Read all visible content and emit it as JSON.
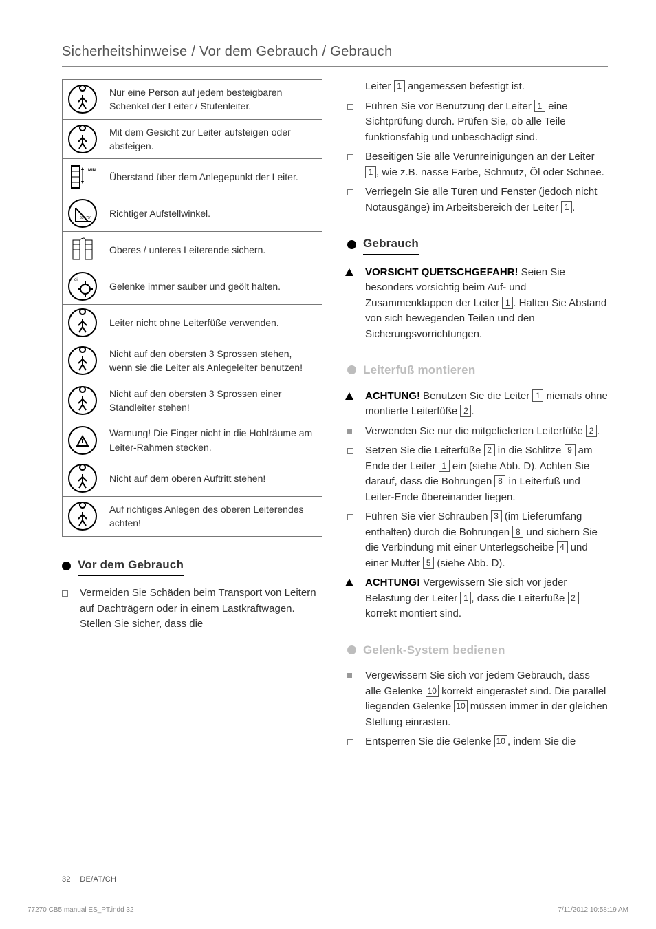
{
  "page_title": "Sicherheitshinweise / Vor dem Gebrauch / Gebrauch",
  "icon_rows": [
    {
      "text": "Nur eine Person auf jedem besteigbaren Schenkel der Leiter / Stufenleiter."
    },
    {
      "text": "Mit dem Gesicht zur Leiter aufsteigen oder absteigen."
    },
    {
      "text": "Überstand über dem Anlegepunkt der Leiter.",
      "badge": "MIN. 1m"
    },
    {
      "text": "Richtiger Aufstellwinkel.",
      "angle": "65°-75°"
    },
    {
      "text": "Oberes / unteres Leiterende sichern."
    },
    {
      "text": "Gelenke immer sauber und geölt halten."
    },
    {
      "text": "Leiter nicht ohne Leiterfüße verwenden."
    },
    {
      "text": "Nicht auf den obersten 3 Sprossen stehen, wenn sie die Leiter als Anlegeleiter benutzen!"
    },
    {
      "text": "Nicht auf den obersten 3 Sprossen einer Standleiter stehen!"
    },
    {
      "text": "Warnung! Die Finger nicht in die Hohlräume am Leiter-Rahmen stecken."
    },
    {
      "text": "Nicht auf dem oberen Auftritt stehen!"
    },
    {
      "text": "Auf richtiges Anlegen des oberen Leiterendes achten!"
    }
  ],
  "sections": {
    "vor_dem_gebrauch": {
      "title": "Vor dem Gebrauch",
      "items": [
        {
          "marker": "hollow",
          "text": "Vermeiden Sie Schäden beim Transport von Leitern auf Dachträgern oder in einem Lastkraftwagen. Stellen Sie sicher, dass die"
        }
      ]
    },
    "right_intro_items": [
      {
        "marker": "none",
        "pre": "Leiter ",
        "ref": "1",
        "post": " angemessen befestigt ist."
      },
      {
        "marker": "hollow",
        "pre": "Führen Sie vor Benutzung der Leiter ",
        "ref": "1",
        "post": " eine Sichtprüfung durch. Prüfen Sie, ob alle Teile funktionsfähig und unbeschädigt sind."
      },
      {
        "marker": "hollow",
        "pre": "Beseitigen Sie alle Verunreinigungen an der Leiter ",
        "ref": "1",
        "post": ", wie z.B. nasse Farbe, Schmutz, Öl oder Schnee."
      },
      {
        "marker": "hollow",
        "pre": "Verriegeln Sie alle Türen und Fenster (jedoch nicht Notausgänge) im Arbeitsbereich der Leiter ",
        "ref": "1",
        "post": "."
      }
    ],
    "gebrauch": {
      "title": "Gebrauch",
      "items": [
        {
          "marker": "tri",
          "bold": "VORSICHT QUETSCHGEFAHR!",
          "pre": " Seien Sie besonders vorsichtig beim Auf- und Zusammenklappen der Leiter ",
          "ref": "1",
          "post": ". Halten Sie Abstand von sich bewegenden Teilen und den Sicherungsvorrichtungen."
        }
      ]
    },
    "leiterfuss": {
      "title": "Leiterfuß montieren",
      "items": [
        {
          "marker": "tri",
          "bold": "ACHTUNG!",
          "pre": " Benutzen Sie die Leiter ",
          "ref": "1",
          "post_a": " niemals ohne montierte Leiterfüße ",
          "ref2": "2",
          "post": "."
        },
        {
          "marker": "solid",
          "pre": "Verwenden Sie nur die mitgelieferten Leiterfüße ",
          "ref": "2",
          "post": "."
        },
        {
          "marker": "hollow",
          "pre": "Setzen Sie die Leiterfüße ",
          "ref": "2",
          "mid1": " in die Schlitze ",
          "ref2": "9",
          "mid2": " am Ende der Leiter ",
          "ref3": "1",
          "mid3": " ein (siehe Abb. D). Achten Sie darauf, dass die Bohrungen ",
          "ref4": "8",
          "post": " in Leiterfuß und Leiter-Ende übereinander liegen."
        },
        {
          "marker": "hollow",
          "pre": "Führen Sie vier Schrauben ",
          "ref": "3",
          "mid1": " (im Lieferumfang enthalten) durch die Bohrungen ",
          "ref2": "8",
          "mid2": " und sichern Sie die Verbindung mit einer Unterlegscheibe ",
          "ref3": "4",
          "mid3": " und einer Mutter ",
          "ref4": "5",
          "post": " (siehe Abb. D)."
        },
        {
          "marker": "tri",
          "bold": "ACHTUNG!",
          "pre": " Vergewissern Sie sich vor jeder Belastung der Leiter ",
          "ref": "1",
          "mid1": ", dass die Leiterfüße ",
          "ref2": "2",
          "post": " korrekt montiert sind."
        }
      ]
    },
    "gelenk": {
      "title": "Gelenk-System bedienen",
      "items": [
        {
          "marker": "solid",
          "pre": "Vergewissern Sie sich vor jedem Gebrauch, dass alle Gelenke ",
          "ref": "10",
          "mid1": " korrekt eingerastet sind. Die parallel liegenden Gelenke ",
          "ref2": "10",
          "post": " müssen immer in der gleichen Stellung einrasten."
        },
        {
          "marker": "hollow",
          "pre": "Entsperren Sie die Gelenke ",
          "ref": "10",
          "post": ", indem Sie die"
        }
      ]
    }
  },
  "footer": {
    "page": "32",
    "region": "DE/AT/CH"
  },
  "print": {
    "left": "77270 CB5 manual ES_PT.indd   32",
    "right": "7/11/2012   10:58:19 AM"
  }
}
